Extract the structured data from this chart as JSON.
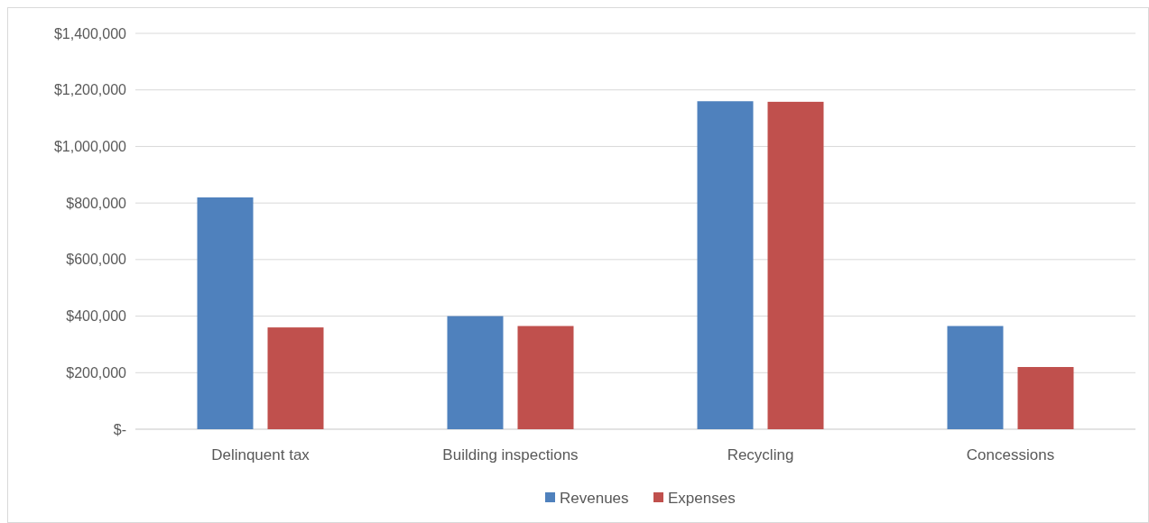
{
  "chart_data": {
    "type": "bar",
    "categories": [
      "Delinquent tax",
      "Building inspections",
      "Recycling",
      "Concessions"
    ],
    "series": [
      {
        "name": "Revenues",
        "color": "#4f81bd",
        "values": [
          820000,
          400000,
          1160000,
          365000
        ]
      },
      {
        "name": "Expenses",
        "color": "#c0504d",
        "values": [
          360000,
          365000,
          1158000,
          220000
        ]
      }
    ],
    "ylim": [
      0,
      1400000
    ],
    "yticks": [
      {
        "value": 0,
        "label": "$-"
      },
      {
        "value": 200000,
        "label": "$200,000"
      },
      {
        "value": 400000,
        "label": "$400,000"
      },
      {
        "value": 600000,
        "label": "$600,000"
      },
      {
        "value": 800000,
        "label": "$800,000"
      },
      {
        "value": 1000000,
        "label": "$1,000,000"
      },
      {
        "value": 1200000,
        "label": "$1,200,000"
      },
      {
        "value": 1400000,
        "label": "$1,400,000"
      }
    ],
    "grid": "y",
    "legend": "bottom"
  }
}
